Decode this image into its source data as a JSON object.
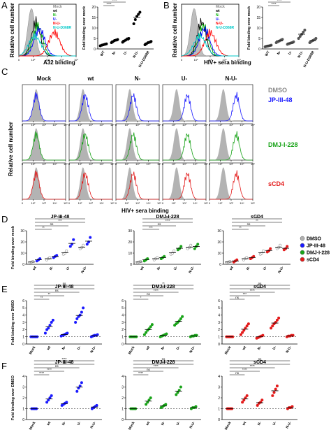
{
  "panels": {
    "A": {
      "letter": "A"
    },
    "B": {
      "letter": "B"
    },
    "C": {
      "letter": "C"
    },
    "D": {
      "letter": "D"
    },
    "E": {
      "letter": "E"
    },
    "F": {
      "letter": "F"
    }
  },
  "histA": {
    "ylabel": "Relative cell number",
    "xlabel": "A32 binding",
    "ticks": [
      "0",
      "10²",
      "10³",
      "10⁴",
      "10⁵"
    ],
    "legend": [
      {
        "name": "Mock",
        "color": "#888888"
      },
      {
        "name": "wt",
        "color": "#000000"
      },
      {
        "name": "N-",
        "color": "#00b400"
      },
      {
        "name": "U-",
        "color": "#0000ff"
      },
      {
        "name": "N-U-",
        "color": "#ff0000"
      },
      {
        "name": "N-U-D368R",
        "color": "#00c8c8"
      }
    ]
  },
  "histB": {
    "ylabel": "Relative cell number",
    "xlabel": "HIV+ sera binding",
    "ticks": [
      "0",
      "10²",
      "10³",
      "10⁴",
      "10⁵"
    ],
    "legend": [
      {
        "name": "Mock",
        "color": "#888888"
      },
      {
        "name": "wt",
        "color": "#000000"
      },
      {
        "name": "N-",
        "color": "#00b400"
      },
      {
        "name": "U-",
        "color": "#0000ff"
      },
      {
        "name": "N-U-",
        "color": "#ff0000"
      },
      {
        "name": "N-U-D368R",
        "color": "#00c8c8"
      }
    ]
  },
  "histC": {
    "ylabel": "Relative cell number",
    "xlabel": "HIV+ sera binding",
    "columns": [
      "Mock",
      "wt",
      "N-",
      "U-",
      "N-U-"
    ],
    "rows": [
      {
        "name": "JP-III-48",
        "color": "#1a1aff"
      },
      {
        "name": "DMJ-I-228",
        "color": "#19a319"
      },
      {
        "name": "sCD4",
        "color": "#e31a1a"
      }
    ],
    "dmso_label": "DMSO",
    "ticks": [
      "0",
      "10²",
      "10³",
      "10⁴",
      "10⁵"
    ]
  },
  "chart_data": [
    {
      "id": "A-scatter",
      "type": "scatter",
      "ylabel": "Fold binding over mock",
      "categories": [
        "WT",
        "N-",
        "U-",
        "N-U-",
        "N-U-D368R"
      ],
      "ylim": [
        0,
        20
      ],
      "yticks": [
        "0",
        "5",
        "10",
        "15",
        "20"
      ],
      "series": [
        {
          "values": [
            [
              1.5,
              1.8,
              2.0,
              2.2,
              2.4
            ],
            [
              3.0,
              3.5,
              4.0,
              4.2,
              4.5
            ],
            [
              3.2,
              3.8,
              4.2,
              4.8,
              5.0
            ],
            [
              12.0,
              14.0,
              15.5,
              16.5,
              17.5
            ],
            [
              2.0,
              2.5,
              3.0,
              3.2,
              3.6
            ]
          ],
          "colors": [
            "#000000",
            "#000000",
            "#000000",
            "#000000",
            "#000000"
          ]
        }
      ],
      "sig_labels": [
        "****",
        "****",
        "****",
        "****"
      ]
    },
    {
      "id": "B-scatter",
      "type": "scatter",
      "ylabel": "Fold binding over mock",
      "categories": [
        "WT",
        "N-",
        "U-",
        "N-U-",
        "N-U-D368R"
      ],
      "ylim": [
        0,
        20
      ],
      "yticks": [
        "0",
        "5",
        "10",
        "15",
        "20"
      ],
      "series": [
        {
          "values": [
            [
              1.0,
              1.2,
              1.4,
              1.6,
              1.8
            ],
            [
              3.0,
              3.4,
              3.8,
              4.2,
              4.6
            ],
            [
              2.2,
              2.5,
              2.8,
              3.0,
              3.4
            ],
            [
              5.0,
              6.0,
              7.0,
              8.0,
              9.0
            ],
            [
              3.0,
              3.6,
              4.0,
              4.4,
              5.0
            ]
          ],
          "colors": [
            "#555555",
            "#555555",
            "#555555",
            "#555555",
            "#555555"
          ]
        }
      ],
      "sig_labels": [
        "****",
        "****",
        "****",
        "****"
      ]
    },
    {
      "id": "D-JP",
      "type": "scatter",
      "title": "JP-III-48",
      "ylabel": "Fold binding over mock",
      "categories": [
        "wt",
        "N-",
        "U-",
        "N-U-"
      ],
      "ylim": [
        0,
        30
      ],
      "yticks": [
        "0",
        "10",
        "20",
        "30"
      ],
      "series": [
        {
          "name": "DMSO",
          "color": "#b0b0b0",
          "values": [
            [
              1.5,
              2,
              2.5
            ],
            [
              4,
              5,
              6
            ],
            [
              9,
              10,
              12
            ],
            [
              14,
              15,
              17
            ]
          ]
        },
        {
          "name": "JP-III-48",
          "color": "#1a1aff",
          "values": [
            [
              3,
              4,
              5
            ],
            [
              6,
              7,
              8
            ],
            [
              16,
              18,
              22
            ],
            [
              18,
              20,
              24
            ]
          ]
        }
      ],
      "sig_labels": [
        "**",
        "ns",
        "***",
        "ns"
      ]
    },
    {
      "id": "D-DMJ",
      "type": "scatter",
      "title": "DMJ-I-228",
      "categories": [
        "wt",
        "N-",
        "U-",
        "N-U-"
      ],
      "ylim": [
        0,
        30
      ],
      "yticks": [
        "0",
        "10",
        "20",
        "30"
      ],
      "series": [
        {
          "name": "DMSO",
          "color": "#b0b0b0",
          "values": [
            [
              1.5,
              2,
              2.5
            ],
            [
              4,
              5,
              6
            ],
            [
              9,
              10,
              12
            ],
            [
              14,
              15,
              17
            ]
          ]
        },
        {
          "name": "DMJ-I-228",
          "color": "#19a319",
          "values": [
            [
              3,
              4,
              5
            ],
            [
              5,
              6,
              7
            ],
            [
              13,
              14,
              16
            ],
            [
              14,
              16,
              18
            ]
          ]
        }
      ],
      "sig_labels": [
        "***",
        "ns",
        "****",
        "ns"
      ]
    },
    {
      "id": "D-sCD4",
      "type": "scatter",
      "title": "sCD4",
      "categories": [
        "wt",
        "N-",
        "U-",
        "N-U-"
      ],
      "ylim": [
        0,
        30
      ],
      "yticks": [
        "0",
        "10",
        "20",
        "30"
      ],
      "series": [
        {
          "name": "DMSO",
          "color": "#b0b0b0",
          "values": [
            [
              1.5,
              2,
              2.5
            ],
            [
              4,
              5,
              6
            ],
            [
              9,
              10,
              12
            ],
            [
              14,
              15,
              17
            ]
          ]
        },
        {
          "name": "sCD4",
          "color": "#e31a1a",
          "values": [
            [
              2,
              3,
              4
            ],
            [
              5,
              6,
              7
            ],
            [
              11,
              12,
              14
            ],
            [
              13,
              14,
              16
            ]
          ]
        }
      ],
      "sig_labels": [
        "**",
        "ns",
        "**",
        "ns"
      ]
    },
    {
      "id": "E-JP",
      "type": "scatter",
      "title": "JP-III-48",
      "ylabel": "Fold binding over DMSO",
      "categories": [
        "Mock",
        "wt",
        "N-",
        "U-",
        "N-U-"
      ],
      "ylim": [
        0,
        6
      ],
      "yticks": [
        "0",
        "1",
        "2",
        "3",
        "4",
        "5",
        "6"
      ],
      "color": "#1a1aff",
      "values": [
        [
          1.0,
          1.0,
          1.0,
          1.0,
          1.0
        ],
        [
          1.5,
          2.0,
          2.2,
          2.6,
          3.0,
          3.3
        ],
        [
          1.1,
          1.2,
          1.3,
          1.4,
          1.5
        ],
        [
          3.0,
          3.5,
          3.8,
          4.0,
          4.4,
          5.0
        ],
        [
          1.0,
          1.1,
          1.2,
          1.2,
          1.3
        ]
      ],
      "sig_labels": [
        "**",
        "**",
        "ns",
        "**",
        "ns"
      ]
    },
    {
      "id": "E-DMJ",
      "type": "scatter",
      "title": "DMJ-I-228",
      "categories": [
        "Mock",
        "wt",
        "N-",
        "U-",
        "N-U-"
      ],
      "ylim": [
        0,
        6
      ],
      "yticks": [
        "0",
        "1",
        "2",
        "3",
        "4",
        "5",
        "6"
      ],
      "color": "#19a319",
      "values": [
        [
          1.0,
          1.0,
          1.0,
          1.0,
          1.0
        ],
        [
          1.3,
          1.6,
          1.9,
          2.1,
          2.4,
          2.7
        ],
        [
          1.0,
          1.1,
          1.2,
          1.3,
          1.4
        ],
        [
          2.6,
          2.8,
          3.0,
          3.2,
          3.5,
          3.8
        ],
        [
          1.0,
          1.1,
          1.1,
          1.2,
          1.2
        ]
      ],
      "sig_labels": [
        "*",
        "ns",
        "****",
        "ns",
        "**"
      ]
    },
    {
      "id": "E-sCD4",
      "type": "scatter",
      "title": "sCD4",
      "categories": [
        "Mock",
        "wt",
        "N-",
        "U-",
        "N-U-"
      ],
      "ylim": [
        0,
        6
      ],
      "yticks": [
        "0",
        "1",
        "2",
        "3",
        "4",
        "5",
        "6"
      ],
      "color": "#e31a1a",
      "values": [
        [
          1.0,
          1.0,
          1.0,
          1.0,
          1.0
        ],
        [
          1.3,
          1.6,
          1.9,
          2.2,
          2.5,
          2.8
        ],
        [
          0.8,
          0.9,
          1.0,
          1.1,
          1.2
        ],
        [
          2.2,
          2.5,
          2.8,
          3.0,
          3.3,
          3.6
        ],
        [
          1.0,
          1.1,
          1.1,
          1.2,
          1.2
        ]
      ],
      "sig_labels": [
        "ns",
        "***",
        "****",
        "ns",
        "ns"
      ]
    },
    {
      "id": "F-JP",
      "type": "scatter",
      "title": "JP-III-48",
      "ylabel": "Fold binding over DMSO",
      "categories": [
        "Mock",
        "wt",
        "N-",
        "U-",
        "N-U-"
      ],
      "ylim": [
        0,
        4
      ],
      "yticks": [
        "0",
        "1",
        "2",
        "3",
        "4"
      ],
      "color": "#1a1aff",
      "values": [
        [
          1.0,
          1.0,
          1.0,
          1.0
        ],
        [
          1.6,
          1.8,
          2.0,
          2.2
        ],
        [
          1.3,
          1.4,
          1.5,
          1.6
        ],
        [
          2.6,
          2.9,
          3.1,
          3.4
        ],
        [
          1.0,
          1.1,
          1.2,
          1.3
        ]
      ],
      "sig_labels": [
        "****",
        "****",
        "ns",
        "ns",
        "****"
      ]
    },
    {
      "id": "F-DMJ",
      "type": "scatter",
      "title": "DMJ-I-228",
      "categories": [
        "Mock",
        "wt",
        "N-",
        "U-",
        "N-U-"
      ],
      "ylim": [
        0,
        4
      ],
      "yticks": [
        "0",
        "1",
        "2",
        "3",
        "4"
      ],
      "color": "#19a319",
      "values": [
        [
          1.0,
          1.0,
          1.0,
          1.0
        ],
        [
          1.4,
          1.6,
          1.8,
          2.0
        ],
        [
          1.1,
          1.2,
          1.3,
          1.4
        ],
        [
          2.3,
          2.5,
          2.7,
          3.0
        ],
        [
          1.0,
          1.1,
          1.1,
          1.2
        ]
      ],
      "sig_labels": [
        "****",
        "ns",
        "****",
        "ns",
        "ns"
      ]
    },
    {
      "id": "F-sCD4",
      "type": "scatter",
      "title": "sCD4",
      "categories": [
        "Mock",
        "wt",
        "N-",
        "U-",
        "N-U-"
      ],
      "ylim": [
        0,
        4
      ],
      "yticks": [
        "0",
        "1",
        "2",
        "3",
        "4"
      ],
      "color": "#e31a1a",
      "values": [
        [
          1.0,
          1.0,
          1.0,
          1.0
        ],
        [
          1.6,
          1.8,
          2.0,
          2.2
        ],
        [
          1.3,
          1.5,
          1.6,
          1.8
        ],
        [
          2.2,
          2.5,
          2.8,
          3.1
        ],
        [
          1.0,
          1.1,
          1.1,
          1.2
        ]
      ],
      "sig_labels": [
        "ns",
        "****",
        "****",
        "**",
        "ns"
      ]
    }
  ],
  "legendD": [
    {
      "name": "DMSO",
      "color": "#b0b0b0"
    },
    {
      "name": "JP-III-48",
      "color": "#1a1aff"
    },
    {
      "name": "DMJ-I-228",
      "color": "#19a319"
    },
    {
      "name": "sCD4",
      "color": "#e31a1a"
    }
  ]
}
